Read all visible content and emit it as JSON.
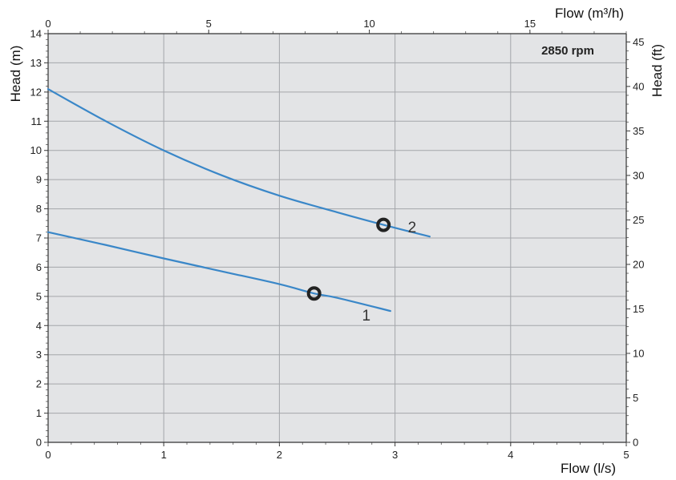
{
  "chart_data": {
    "type": "line",
    "annotation": "2850 rpm",
    "x_bottom": {
      "label": "Flow (l/s)",
      "range": [
        0,
        5
      ],
      "ticks": [
        "0",
        "1",
        "2",
        "3",
        "4",
        "5"
      ]
    },
    "x_top": {
      "label": "Flow (m³/h)",
      "range": [
        0,
        18
      ],
      "ticks": [
        "0",
        "5",
        "10",
        "15"
      ]
    },
    "y_left": {
      "label": "Head (m)",
      "range": [
        0,
        14
      ],
      "ticks": [
        "0",
        "1",
        "2",
        "3",
        "4",
        "5",
        "6",
        "7",
        "8",
        "9",
        "10",
        "11",
        "12",
        "13",
        "14"
      ]
    },
    "y_right": {
      "label": "Head (ft)",
      "range": [
        0,
        45.93
      ],
      "ticks": [
        "0",
        "5",
        "10",
        "15",
        "20",
        "25",
        "30",
        "35",
        "40",
        "45"
      ]
    },
    "grid": true,
    "series": [
      {
        "name": "1",
        "color": "#3a87c8",
        "x": [
          0,
          0.5,
          1.0,
          1.5,
          2.0,
          2.3,
          2.5,
          2.96
        ],
        "y": [
          7.2,
          6.76,
          6.3,
          5.86,
          5.42,
          5.1,
          4.95,
          4.5
        ],
        "marker": {
          "x": 2.3,
          "y": 5.1
        }
      },
      {
        "name": "2",
        "color": "#3a87c8",
        "x": [
          0,
          0.5,
          1.0,
          1.5,
          2.0,
          2.5,
          2.9,
          3.3
        ],
        "y": [
          12.1,
          11.0,
          10.0,
          9.15,
          8.45,
          7.88,
          7.45,
          7.05
        ],
        "marker": {
          "x": 2.9,
          "y": 7.45
        }
      }
    ]
  }
}
